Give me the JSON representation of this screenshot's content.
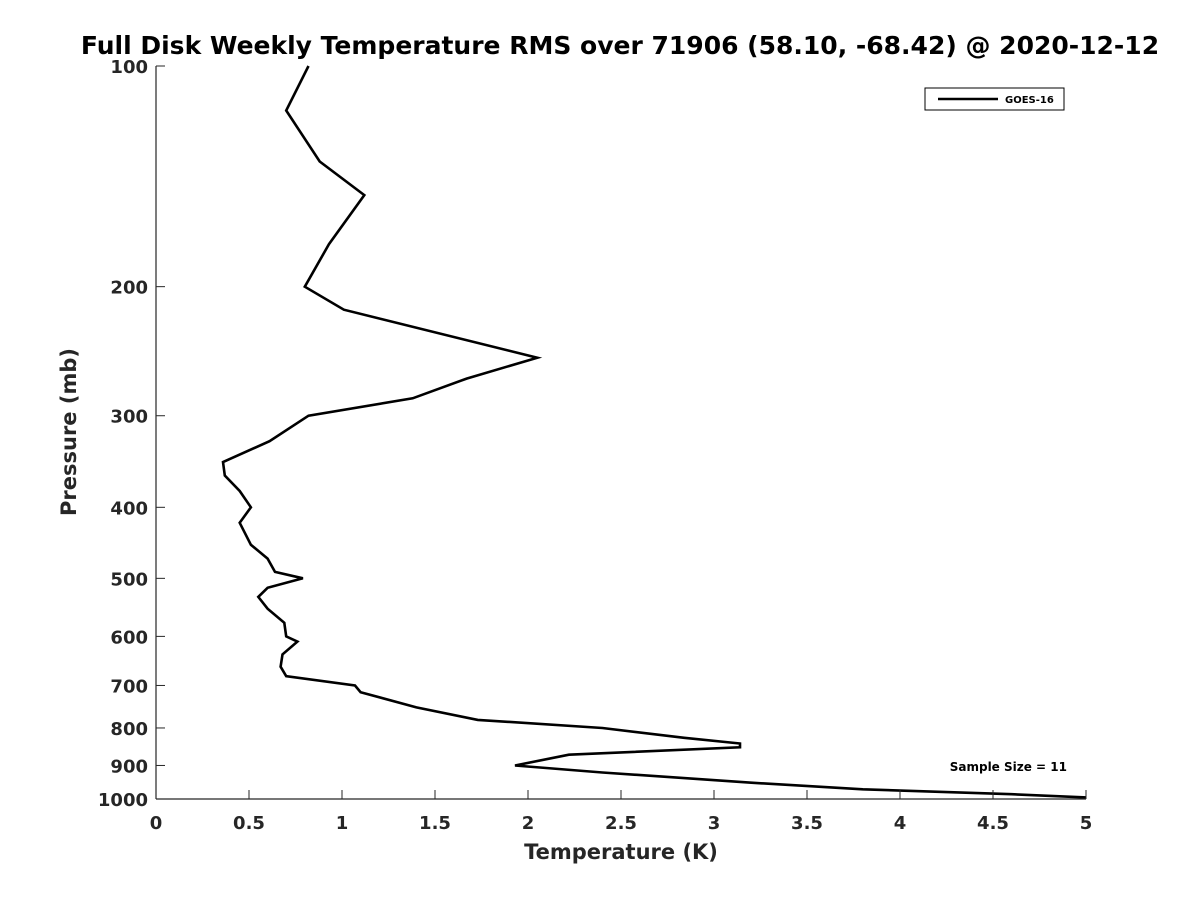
{
  "chart_data": {
    "type": "line",
    "title": "Full Disk Weekly Temperature RMS over 71906 (58.10, -68.42) @ 2020-12-12",
    "xlabel": "Temperature (K)",
    "ylabel": "Pressure (mb)",
    "xlim": [
      0,
      5
    ],
    "ylim": [
      100,
      1000
    ],
    "y_scale": "log",
    "y_reversed": true,
    "x_ticks": [
      0,
      0.5,
      1,
      1.5,
      2,
      2.5,
      3,
      3.5,
      4,
      4.5,
      5
    ],
    "x_tick_labels": [
      "0",
      "0.5",
      "1",
      "1.5",
      "2",
      "2.5",
      "3",
      "3.5",
      "4",
      "4.5",
      "5"
    ],
    "y_ticks": [
      100,
      200,
      300,
      400,
      500,
      600,
      700,
      800,
      900,
      1000
    ],
    "y_tick_labels": [
      "100",
      "200",
      "300",
      "400",
      "500",
      "600",
      "700",
      "800",
      "900",
      "1000"
    ],
    "grid": false,
    "legend_position": "top-right",
    "line_color": "#000000",
    "annotation": "Sample Size = 11",
    "series": [
      {
        "name": "GOES-16",
        "x": [
          0.82,
          0.7,
          0.88,
          1.12,
          0.93,
          0.8,
          1.01,
          2.05,
          1.67,
          1.38,
          0.82,
          0.61,
          0.36,
          0.37,
          0.45,
          0.51,
          0.45,
          0.51,
          0.6,
          0.64,
          0.79,
          0.6,
          0.55,
          0.6,
          0.69,
          0.7,
          0.76,
          0.68,
          0.67,
          0.7,
          1.07,
          1.1,
          1.4,
          1.73,
          2.4,
          2.84,
          3.14,
          3.14,
          2.22,
          1.93,
          2.4,
          3.2,
          3.8,
          4.6,
          5.0
        ],
        "y": [
          100,
          115,
          135,
          150,
          175,
          200,
          215,
          250,
          267,
          284,
          300,
          325,
          347,
          362,
          380,
          400,
          420,
          450,
          470,
          490,
          500,
          515,
          530,
          550,
          575,
          600,
          610,
          635,
          660,
          680,
          700,
          715,
          750,
          780,
          800,
          825,
          840,
          850,
          870,
          900,
          920,
          950,
          970,
          985,
          995
        ]
      }
    ]
  }
}
